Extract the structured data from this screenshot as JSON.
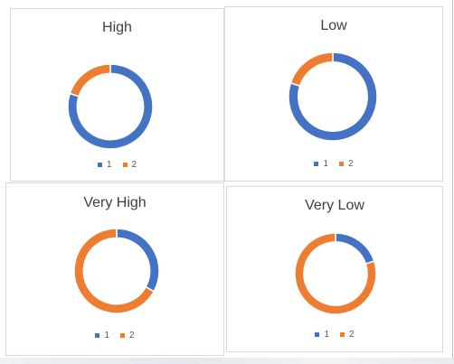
{
  "colors": {
    "series_1": "#4472C4",
    "series_2": "#ED7D31",
    "panel_border": "#D9D9D9",
    "title_text": "#404040",
    "legend_text": "#595959"
  },
  "chart_data": [
    {
      "type": "pie",
      "variant": "doughnut",
      "title": "High",
      "categories": [
        "1",
        "2"
      ],
      "values": [
        0.8,
        0.2
      ],
      "legend_position": "bottom"
    },
    {
      "type": "pie",
      "variant": "doughnut",
      "title": "Low",
      "categories": [
        "1",
        "2"
      ],
      "values": [
        0.8,
        0.2
      ],
      "legend_position": "bottom"
    },
    {
      "type": "pie",
      "variant": "doughnut",
      "title": "Very High",
      "categories": [
        "1",
        "2"
      ],
      "values": [
        0.33,
        0.67
      ],
      "legend_position": "bottom"
    },
    {
      "type": "pie",
      "variant": "doughnut",
      "title": "Very Low",
      "categories": [
        "1",
        "2"
      ],
      "values": [
        0.2,
        0.8
      ],
      "legend_position": "bottom"
    }
  ]
}
